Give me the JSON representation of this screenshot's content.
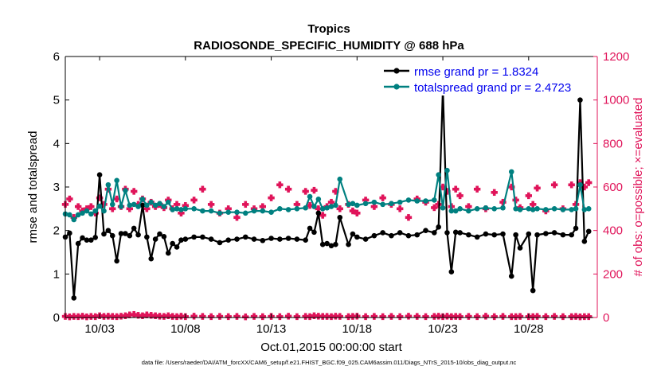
{
  "chart_data": {
    "type": "line",
    "title": "Tropics",
    "subtitle": "RADIOSONDE_SPECIFIC_HUMIDITY @ 688 hPa",
    "xlabel": "Oct.01,2015 00:00:00 start",
    "ylabel_left": "rmse and totalspread",
    "ylabel_right": "# of obs: o=possible; ×=evaluated",
    "footnote": "data file: /Users/raeder/DAI/ATM_forcXX/CAM6_setup/f.e21.FHIST_BGC.f09_025.CAM6assim.011/Diags_NTrS_2015-10/obs_diag_output.nc",
    "xlim": [
      1,
      32
    ],
    "ylim_left": [
      0,
      6
    ],
    "ylim_right": [
      0,
      1200
    ],
    "x_ticks": [
      3,
      8,
      13,
      18,
      23,
      28
    ],
    "x_tick_labels": [
      "10/03",
      "10/08",
      "10/13",
      "10/18",
      "10/23",
      "10/28"
    ],
    "y_ticks_left": [
      0,
      1,
      2,
      3,
      4,
      5,
      6
    ],
    "y_ticks_right": [
      0,
      200,
      400,
      600,
      800,
      1000,
      1200
    ],
    "legend_position": "top-right",
    "grid": false,
    "series": [
      {
        "name": "rmse",
        "legend_label": "rmse grand pr = 1.8324",
        "color": "#000000",
        "axis": "left",
        "x": [
          1.0,
          1.25,
          1.5,
          1.75,
          2.0,
          2.25,
          2.5,
          2.75,
          3.0,
          3.25,
          3.5,
          3.75,
          4.0,
          4.25,
          4.5,
          4.75,
          5.0,
          5.25,
          5.5,
          5.75,
          6.0,
          6.25,
          6.5,
          6.75,
          7.0,
          7.25,
          7.5,
          7.75,
          8.0,
          8.5,
          9.0,
          9.5,
          10.0,
          10.5,
          11.0,
          11.5,
          12.0,
          12.5,
          13.0,
          13.5,
          14.0,
          14.5,
          15.0,
          15.25,
          15.5,
          15.75,
          16.0,
          16.25,
          16.5,
          16.75,
          17.0,
          17.5,
          17.75,
          18.0,
          18.5,
          19.0,
          19.5,
          20.0,
          20.5,
          21.0,
          21.5,
          22.0,
          22.5,
          22.75,
          23.0,
          23.25,
          23.5,
          23.75,
          24.0,
          24.5,
          25.0,
          25.5,
          26.0,
          26.5,
          27.0,
          27.25,
          27.5,
          28.0,
          28.25,
          28.5,
          29.0,
          29.5,
          30.0,
          30.5,
          30.75,
          31.0,
          31.25,
          31.5
        ],
        "values": [
          1.85,
          1.94,
          0.45,
          1.7,
          1.83,
          1.78,
          1.78,
          1.84,
          3.28,
          1.92,
          2.0,
          1.88,
          1.3,
          1.93,
          1.93,
          1.88,
          2.05,
          1.9,
          2.58,
          1.85,
          1.35,
          1.8,
          1.92,
          1.86,
          1.48,
          1.7,
          1.62,
          1.78,
          1.8,
          1.85,
          1.85,
          1.8,
          1.72,
          1.78,
          1.8,
          1.85,
          1.8,
          1.77,
          1.82,
          1.8,
          1.82,
          1.8,
          1.78,
          2.05,
          1.96,
          2.4,
          1.68,
          1.7,
          1.65,
          1.68,
          2.3,
          1.68,
          1.92,
          1.85,
          1.8,
          1.88,
          1.95,
          1.88,
          1.95,
          1.88,
          1.9,
          2.0,
          1.95,
          2.08,
          5.28,
          1.95,
          1.05,
          1.96,
          1.95,
          1.9,
          1.85,
          1.92,
          1.9,
          1.92,
          0.95,
          1.9,
          1.6,
          1.92,
          0.62,
          1.9,
          1.93,
          1.95,
          1.9,
          1.9,
          2.05,
          5.0,
          1.75,
          1.98
        ]
      },
      {
        "name": "totalspread",
        "legend_label": "totalspread grand pr = 2.4723",
        "color": "#008080",
        "axis": "left",
        "x": [
          1.0,
          1.25,
          1.5,
          1.75,
          2.0,
          2.25,
          2.5,
          2.75,
          3.0,
          3.25,
          3.5,
          3.75,
          4.0,
          4.25,
          4.5,
          4.75,
          5.0,
          5.25,
          5.5,
          5.75,
          6.0,
          6.25,
          6.5,
          6.75,
          7.0,
          7.25,
          7.5,
          7.75,
          8.0,
          8.5,
          9.0,
          9.5,
          10.0,
          10.5,
          11.0,
          11.5,
          12.0,
          12.5,
          13.0,
          13.5,
          14.0,
          14.5,
          15.0,
          15.25,
          15.5,
          15.75,
          16.0,
          16.25,
          16.5,
          16.75,
          17.0,
          17.5,
          17.75,
          18.0,
          18.5,
          19.0,
          19.5,
          20.0,
          20.5,
          21.0,
          21.5,
          22.0,
          22.5,
          22.75,
          23.0,
          23.25,
          23.5,
          23.75,
          24.0,
          24.5,
          25.0,
          25.5,
          26.0,
          26.5,
          27.0,
          27.25,
          27.5,
          28.0,
          28.25,
          28.5,
          29.0,
          29.5,
          30.0,
          30.5,
          30.75,
          31.0,
          31.25,
          31.5
        ],
        "values": [
          2.38,
          2.36,
          2.25,
          2.36,
          2.4,
          2.45,
          2.38,
          2.45,
          2.56,
          2.45,
          3.05,
          2.6,
          3.15,
          2.55,
          2.92,
          2.58,
          2.6,
          2.55,
          2.72,
          2.58,
          2.65,
          2.58,
          2.62,
          2.55,
          2.65,
          2.48,
          2.5,
          2.48,
          2.5,
          2.5,
          2.45,
          2.45,
          2.4,
          2.42,
          2.42,
          2.4,
          2.45,
          2.45,
          2.42,
          2.5,
          2.48,
          2.5,
          2.52,
          2.78,
          2.55,
          2.72,
          2.5,
          2.52,
          2.55,
          2.58,
          3.18,
          2.6,
          2.62,
          2.58,
          2.62,
          2.65,
          2.6,
          2.62,
          2.65,
          2.7,
          2.68,
          2.68,
          2.7,
          3.28,
          2.52,
          3.38,
          2.45,
          2.45,
          2.5,
          2.45,
          2.5,
          2.52,
          2.5,
          2.52,
          3.35,
          2.5,
          2.48,
          2.5,
          2.48,
          2.5,
          2.48,
          2.5,
          2.48,
          2.48,
          2.5,
          3.05,
          2.48,
          2.5
        ]
      },
      {
        "name": "obs possible",
        "color": "#e0145a",
        "axis": "right",
        "marker": "o",
        "x": [
          1.0,
          1.25,
          1.5,
          1.75,
          2.0,
          2.25,
          2.5,
          2.75,
          3.0,
          3.25,
          3.5,
          3.75,
          4.0,
          4.25,
          4.5,
          4.75,
          5.0,
          5.25,
          5.5,
          5.75,
          6.0,
          6.25,
          6.5,
          6.75,
          7.0,
          7.25,
          7.5,
          7.75,
          8.0,
          8.5,
          9.0,
          9.5,
          10.0,
          10.5,
          11.0,
          11.5,
          12.0,
          12.5,
          13.0,
          13.5,
          14.0,
          14.5,
          15.0,
          15.25,
          15.5,
          15.75,
          16.0,
          16.25,
          16.5,
          16.75,
          17.0,
          17.5,
          17.75,
          18.0,
          18.5,
          19.0,
          19.5,
          20.0,
          20.5,
          21.0,
          21.5,
          22.0,
          22.5,
          22.75,
          23.0,
          23.25,
          23.5,
          23.75,
          24.0,
          24.5,
          25.0,
          25.5,
          26.0,
          26.5,
          27.0,
          27.25,
          27.5,
          28.0,
          28.25,
          28.5,
          29.0,
          29.5,
          30.0,
          30.5,
          30.75,
          31.0,
          31.25,
          31.5
        ],
        "values": [
          520,
          545,
          460,
          510,
          490,
          500,
          510,
          480,
          550,
          520,
          590,
          500,
          545,
          510,
          590,
          500,
          580,
          520,
          545,
          500,
          530,
          510,
          520,
          505,
          540,
          500,
          520,
          480,
          515,
          540,
          590,
          520,
          480,
          500,
          460,
          520,
          500,
          510,
          550,
          610,
          590,
          520,
          580,
          515,
          585,
          500,
          470,
          510,
          530,
          580,
          500,
          520,
          490,
          480,
          540,
          510,
          550,
          520,
          500,
          460,
          545,
          530,
          505,
          520,
          600,
          580,
          510,
          590,
          560,
          510,
          590,
          500,
          575,
          530,
          600,
          540,
          505,
          560,
          520,
          595,
          490,
          610,
          500,
          610,
          520,
          620,
          600,
          620
        ]
      },
      {
        "name": "obs evaluated",
        "color": "#e0145a",
        "axis": "right",
        "marker": "x",
        "x": [
          1.0,
          1.25,
          1.5,
          1.75,
          2.0,
          2.25,
          2.5,
          2.75,
          3.0,
          3.25,
          3.5,
          3.75,
          4.0,
          4.25,
          4.5,
          4.75,
          5.0,
          5.25,
          5.5,
          5.75,
          6.0,
          6.25,
          6.5,
          6.75,
          7.0,
          7.25,
          7.5,
          7.75,
          8.0,
          8.5,
          9.0,
          9.5,
          10.0,
          10.5,
          11.0,
          11.5,
          12.0,
          12.5,
          13.0,
          13.5,
          14.0,
          14.5,
          15.0,
          15.25,
          15.5,
          15.75,
          16.0,
          16.25,
          16.5,
          16.75,
          17.0,
          17.5,
          17.75,
          18.0,
          18.5,
          19.0,
          19.5,
          20.0,
          20.5,
          21.0,
          21.5,
          22.0,
          22.5,
          22.75,
          23.0,
          23.25,
          23.5,
          23.75,
          24.0,
          24.5,
          25.0,
          25.5,
          26.0,
          26.5,
          27.0,
          27.25,
          27.5,
          28.0,
          28.25,
          28.5,
          29.0,
          29.5,
          30.0,
          30.5,
          30.75,
          31.0,
          31.25,
          31.5
        ],
        "values": [
          5,
          3,
          5,
          4,
          6,
          3,
          5,
          4,
          8,
          5,
          6,
          5,
          4,
          6,
          8,
          12,
          14,
          10,
          8,
          12,
          10,
          8,
          6,
          5,
          8,
          5,
          4,
          6,
          4,
          6,
          5,
          4,
          5,
          4,
          5,
          3,
          5,
          4,
          5,
          4,
          6,
          4,
          5,
          4,
          8,
          6,
          5,
          5,
          4,
          6,
          5,
          4,
          5,
          6,
          4,
          5,
          4,
          5,
          4,
          6,
          5,
          4,
          5,
          6,
          4,
          6,
          4,
          5,
          4,
          5,
          4,
          6,
          4,
          5,
          4,
          4,
          5,
          4,
          4,
          5,
          4,
          5,
          4,
          4,
          5,
          3,
          4,
          4
        ]
      }
    ]
  }
}
